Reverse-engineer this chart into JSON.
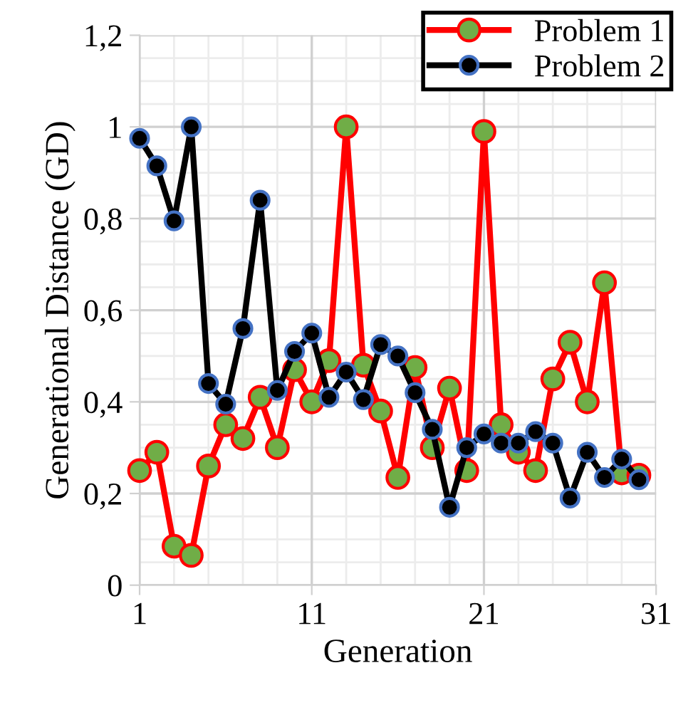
{
  "chart_data": {
    "type": "line",
    "xlabel": "Generation",
    "ylabel": "Generational Distance (GD)",
    "x": [
      1,
      2,
      3,
      4,
      5,
      6,
      7,
      8,
      9,
      10,
      11,
      12,
      13,
      14,
      15,
      16,
      17,
      18,
      19,
      20,
      21,
      22,
      23,
      24,
      25,
      26,
      27,
      28,
      29,
      30
    ],
    "series": [
      {
        "name": "Problem 1",
        "color": "#ff0000",
        "values": [
          0.25,
          0.29,
          0.085,
          0.065,
          0.26,
          0.35,
          0.32,
          0.41,
          0.3,
          0.47,
          0.4,
          0.49,
          1.0,
          0.48,
          0.38,
          0.235,
          0.475,
          0.3,
          0.43,
          0.25,
          0.99,
          0.35,
          0.29,
          0.25,
          0.45,
          0.53,
          0.4,
          0.66,
          0.245,
          0.24
        ]
      },
      {
        "name": "Problem 2",
        "color": "#000000",
        "values": [
          0.975,
          0.915,
          0.795,
          1.0,
          0.44,
          0.395,
          0.56,
          0.84,
          0.425,
          0.51,
          0.55,
          0.41,
          0.465,
          0.405,
          0.525,
          0.5,
          0.42,
          0.34,
          0.17,
          0.3,
          0.33,
          0.31,
          0.31,
          0.335,
          0.31,
          0.19,
          0.29,
          0.235,
          0.275,
          0.23
        ]
      }
    ],
    "xlim": [
      1,
      31
    ],
    "xticks": [
      1,
      11,
      21,
      31
    ],
    "ylim": [
      0,
      1.2
    ],
    "yticks": [
      0,
      {
        "value": 0.2,
        "label": "0,2"
      },
      {
        "value": 0.4,
        "label": "0,4"
      },
      {
        "value": 0.6,
        "label": "0,6"
      },
      {
        "value": 0.8,
        "label": "0,8"
      },
      1,
      {
        "value": 1.2,
        "label": "1,2"
      }
    ],
    "grid": true,
    "legend": "top right",
    "marker": "circle",
    "line_style": "solid"
  }
}
